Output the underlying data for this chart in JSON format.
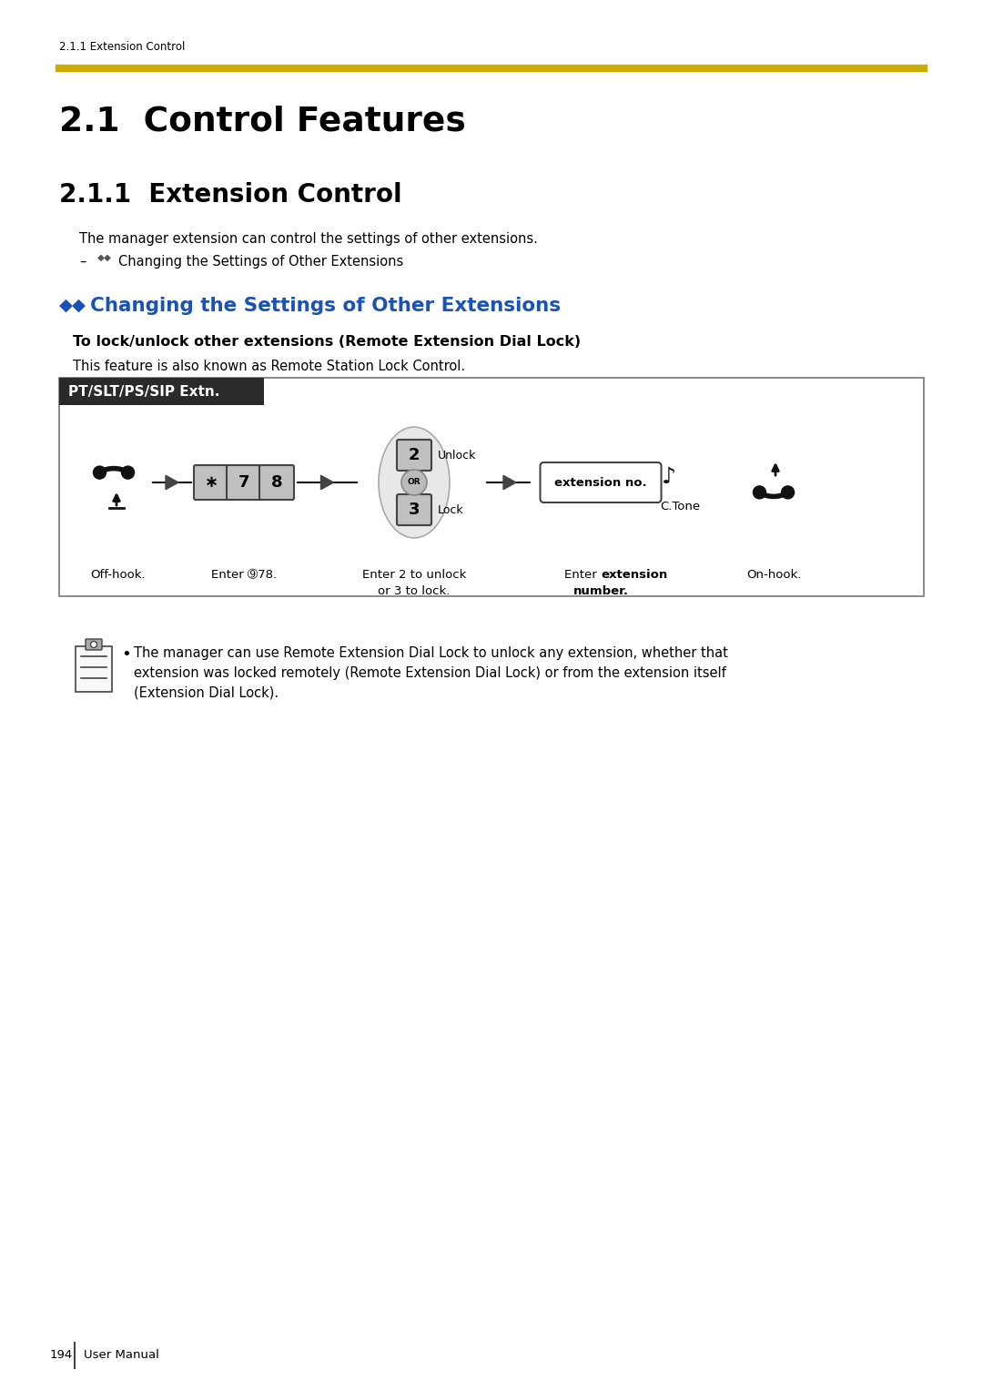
{
  "page_bg": "#ffffff",
  "header_text": "2.1.1 Extension Control",
  "header_line_color": "#ccaa00",
  "title_main": "2.1  Control Features",
  "title_section": "2.1.1  Extension Control",
  "body_text1": "The manager extension can control the settings of other extensions.",
  "body_bullet": "Changing the Settings of Other Extensions",
  "section_heading_color": "#1a52b5",
  "subheading": "To lock/unlock other extensions (Remote Extension Dial Lock)",
  "subtext": "This feature is also known as Remote Station Lock Control.",
  "box_label": "PT/SLT/PS/SIP Extn.",
  "box_label_bg": "#2a2a2a",
  "box_label_color": "#ffffff",
  "step0": "Off-hook.",
  "step1": "Enter ➈78.",
  "step2_line1": "Enter 2 to unlock",
  "step2_line2": "or 3 to lock.",
  "step3_pre": "Enter ",
  "step3_bold": "extension",
  "step3_bold2": "number",
  "step3_post": ".",
  "step4": "On-hook.",
  "unlock_label": "Unlock",
  "lock_label": "Lock",
  "or_label": "OR",
  "ext_box_label": "extension no.",
  "ctone_label": "C.Tone",
  "note_line1": "The manager can use Remote Extension Dial Lock to unlock any extension, whether that",
  "note_line2": "extension was locked remotely (Remote Extension Dial Lock) or from the extension itself",
  "note_line3": "(Extension Dial Lock).",
  "footer_page": "194",
  "footer_label": "User Manual",
  "key_bg": "#c8c8c8",
  "key_border": "#555555"
}
